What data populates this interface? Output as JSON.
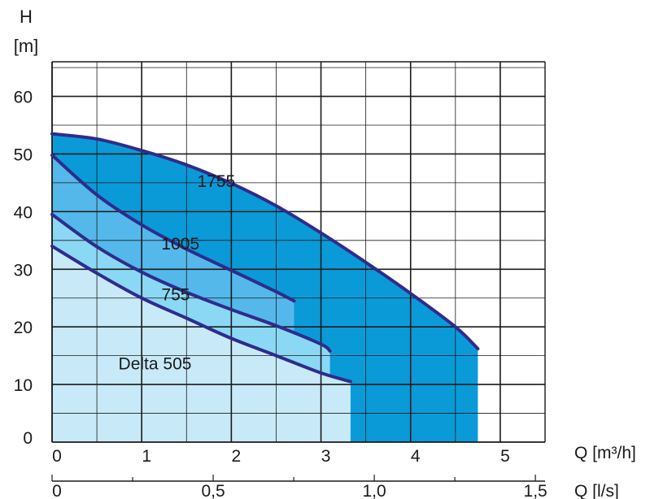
{
  "chart_data": {
    "type": "area",
    "y_axis": {
      "label": "H",
      "unit": "[m]",
      "range": [
        0,
        66
      ],
      "ticks": [
        "0",
        "10",
        "20",
        "30",
        "40",
        "50",
        "60"
      ]
    },
    "x_axis": {
      "label": "Q [m³/h]",
      "range": [
        0,
        5.5
      ],
      "ticks": [
        "0",
        "1",
        "2",
        "3",
        "4",
        "5"
      ]
    },
    "x2_axis": {
      "label": "Q [l/s]",
      "range": [
        0,
        1.53
      ],
      "ticks": [
        "0",
        "0,5",
        "1,0",
        "1,5"
      ]
    },
    "grid": true,
    "series": [
      {
        "name": "1755",
        "color": "#0a9ad8",
        "x": [
          0.0,
          0.5,
          1.0,
          1.5,
          2.0,
          2.5,
          3.0,
          3.5,
          4.0,
          4.5,
          4.75
        ],
        "y": [
          53.5,
          52.6,
          50.6,
          48.1,
          44.9,
          41.0,
          36.3,
          31.2,
          25.8,
          20.0,
          16.2
        ]
      },
      {
        "name": "1005",
        "color": "#55b8ea",
        "x": [
          0.0,
          0.5,
          1.0,
          1.5,
          2.0,
          2.5,
          2.7
        ],
        "y": [
          49.8,
          42.9,
          37.7,
          33.5,
          29.8,
          26.1,
          24.5
        ]
      },
      {
        "name": "755",
        "color": "#8bd8f5",
        "x": [
          0.0,
          0.5,
          1.0,
          1.5,
          2.0,
          2.5,
          3.0,
          3.1
        ],
        "y": [
          39.5,
          33.9,
          29.5,
          26.0,
          23.0,
          20.2,
          17.0,
          15.8
        ]
      },
      {
        "name": "Delta 505",
        "color": "#c8eaf8",
        "x": [
          0.0,
          0.5,
          1.0,
          1.5,
          2.0,
          2.5,
          3.0,
          3.33
        ],
        "y": [
          34.0,
          29.3,
          25.0,
          21.5,
          18.0,
          15.0,
          12.0,
          10.5
        ]
      }
    ]
  }
}
